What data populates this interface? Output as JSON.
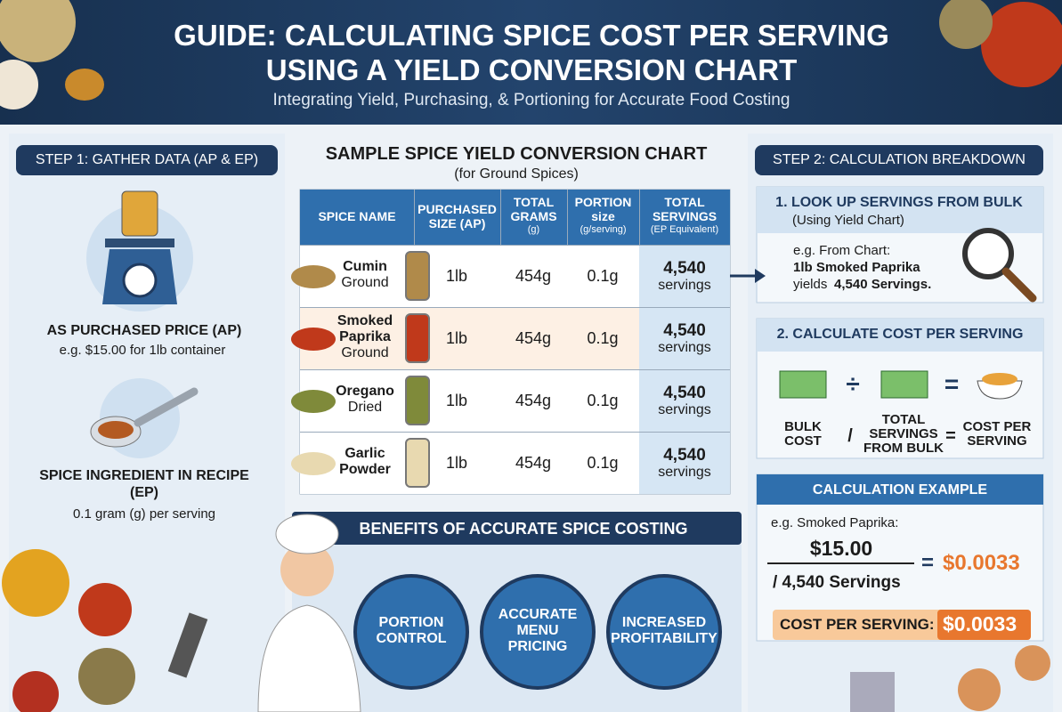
{
  "header": {
    "title_lines": [
      "GUIDE: CALCULATING SPICE COST PER SERVING",
      "USING A YIELD CONVERSION CHART"
    ],
    "subtitle": "Integrating Yield, Purchasing, & Portioning for Accurate Food Costing"
  },
  "step1": {
    "heading": "STEP 1: GATHER DATA (AP & EP)",
    "ap_title": "AS PURCHASED PRICE (AP)",
    "ap_text": "e.g. $15.00 for 1lb container",
    "ep_title_lines": [
      "SPICE INGREDIENT IN RECIPE",
      "(EP)"
    ],
    "ep_text": "0.1 gram (g) per serving"
  },
  "table": {
    "title": "SAMPLE SPICE YIELD CONVERSION CHART",
    "subtitle": "(for Ground Spices)",
    "columns": [
      {
        "label_lines": [
          "SPICE NAME"
        ]
      },
      {
        "label_lines": [
          "PURCHASED",
          "SIZE (AP)"
        ]
      },
      {
        "label_lines": [
          "TOTAL",
          "GRAMS"
        ],
        "unit": "(g)"
      },
      {
        "label_lines": [
          "PORTION",
          "size"
        ],
        "unit": "(g/serving)"
      },
      {
        "label_lines": [
          "TOTAL",
          "SERVINGS"
        ],
        "unit": "(EP Equivalent)"
      }
    ],
    "rows": [
      {
        "name_lines": [
          "Cumin"
        ],
        "form": "Ground",
        "size": "1lb",
        "grams": "454g",
        "portion": "0.1g",
        "servings": "4,540",
        "servings_unit": "servings"
      },
      {
        "name_lines": [
          "Smoked",
          "Paprika"
        ],
        "form": "Ground",
        "size": "1lb",
        "grams": "454g",
        "portion": "0.1g",
        "servings": "4,540",
        "servings_unit": "servings"
      },
      {
        "name_lines": [
          "Oregano"
        ],
        "form": "Dried",
        "size": "1lb",
        "grams": "454g",
        "portion": "0.1g",
        "servings": "4,540",
        "servings_unit": "servings"
      },
      {
        "name_lines": [
          "Garlic",
          "Powder"
        ],
        "size": "1lb",
        "grams": "454g",
        "portion": "0.1g",
        "servings": "4,540",
        "servings_unit": "servings"
      }
    ]
  },
  "benefits": {
    "title": "BENEFITS OF ACCURATE SPICE COSTING",
    "items": [
      [
        "PORTION",
        "CONTROL"
      ],
      [
        "ACCURATE",
        "MENU",
        "PRICING"
      ],
      [
        "INCREASED",
        "PROFITABILITY"
      ]
    ]
  },
  "step2": {
    "heading": "STEP 2: CALCULATION BREAKDOWN",
    "lookup": {
      "title": "1. LOOK UP SERVINGS FROM BULK",
      "note": "(Using Yield Chart)",
      "example_lines": [
        "e.g. From Chart:",
        "1lb Smoked Paprika"
      ],
      "yields_word": "yields",
      "yields_value": "4,540 Servings."
    },
    "calculate": {
      "title": "2. CALCULATE COST PER SERVING",
      "ops": [
        "÷",
        "="
      ],
      "formula": [
        {
          "lines": [
            "BULK",
            "COST"
          ]
        },
        {
          "lines": [
            "/"
          ]
        },
        {
          "lines": [
            "TOTAL",
            "SERVINGS",
            "FROM BULK"
          ]
        },
        {
          "lines": [
            "="
          ]
        },
        {
          "lines": [
            "COST PER",
            "SERVING"
          ]
        }
      ]
    },
    "example": {
      "title": "CALCULATION EXAMPLE",
      "intro": "e.g. Smoked Paprika:",
      "numerator": "$15.00",
      "denominator": "/ 4,540 Servings",
      "equals": "=",
      "result": "$0.0033",
      "final_label": "COST PER SERVING:",
      "final_value": "$0.0033"
    }
  }
}
